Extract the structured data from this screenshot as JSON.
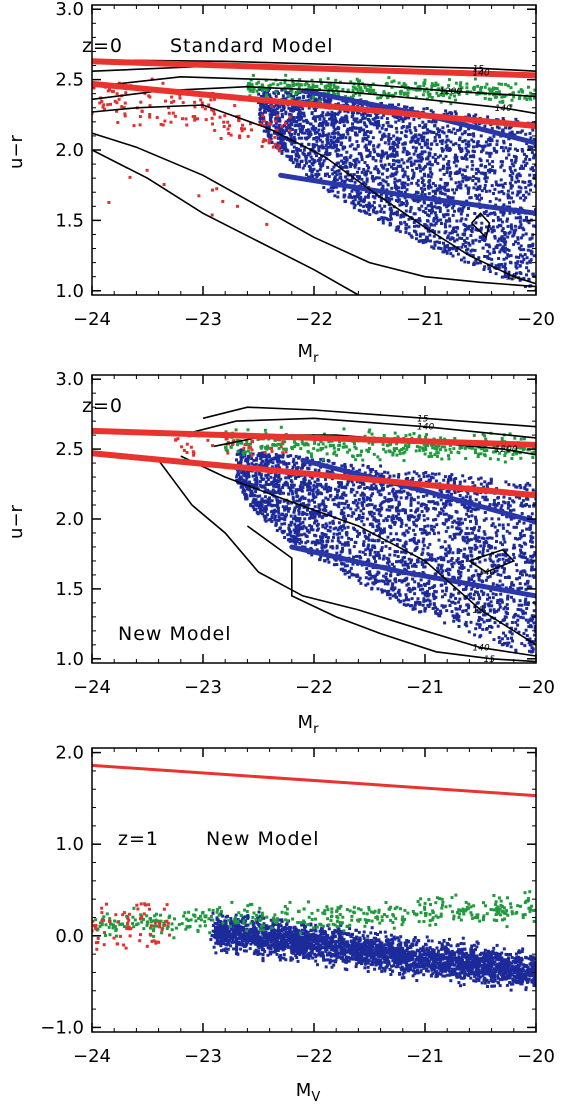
{
  "chart_data": [
    {
      "type": "scatter",
      "title": "",
      "annotations": [
        "z=0",
        "Standard Model"
      ],
      "xlabel": "M",
      "xlabel_sub": "r",
      "ylabel": "u−r",
      "xlim": [
        -24,
        -20
      ],
      "ylim": [
        0.97,
        3.03
      ],
      "xticks": [
        -24,
        -23,
        -22,
        -21,
        -20
      ],
      "xtick_labels": [
        "−24",
        "−23",
        "−22",
        "−21",
        "−20"
      ],
      "yticks": [
        1.0,
        1.5,
        2.0,
        2.5,
        3.0
      ],
      "ytick_labels": [
        "1.0",
        "1.5",
        "2.0",
        "2.5",
        "3.0"
      ],
      "colors": {
        "red": "#e03030",
        "green": "#1f9a3c",
        "blue": "#1c2a9a",
        "line": "#e8332e",
        "contour": "#000000"
      },
      "red_lines": [
        {
          "x": [
            -24,
            -20
          ],
          "y": [
            2.63,
            2.53
          ]
        },
        {
          "x": [
            -24,
            -20
          ],
          "y": [
            2.47,
            2.17
          ]
        }
      ],
      "blue_ridges": [
        {
          "x": [
            -22.1,
            -21.0,
            -20.0
          ],
          "y": [
            2.42,
            2.25,
            2.05
          ]
        },
        {
          "x": [
            -22.3,
            -21.2,
            -20.0
          ],
          "y": [
            1.82,
            1.68,
            1.55
          ]
        }
      ],
      "contour_labels": [
        "15",
        "140",
        "1200",
        "140",
        "15"
      ],
      "contours": [
        {
          "x": [
            -24,
            -22.8,
            -21.5,
            -20.5,
            -20
          ],
          "y": [
            2.64,
            2.63,
            2.6,
            2.58,
            2.56
          ]
        },
        {
          "x": [
            -24,
            -22.8,
            -21.5,
            -20.5,
            -20
          ],
          "y": [
            2.56,
            2.6,
            2.58,
            2.55,
            2.52
          ]
        },
        {
          "x": [
            -24,
            -23.2,
            -22.4,
            -21.6,
            -20.8,
            -20
          ],
          "y": [
            2.45,
            2.52,
            2.5,
            2.47,
            2.42,
            2.38
          ]
        },
        {
          "x": [
            -24,
            -23.4,
            -22.6,
            -21.8,
            -21.0,
            -20.3,
            -20
          ],
          "y": [
            2.36,
            2.42,
            2.45,
            2.42,
            2.36,
            2.3,
            2.26
          ]
        },
        {
          "x": [
            -24,
            -23.6,
            -23.0,
            -22.4,
            -21.9,
            -21.5,
            -21.0,
            -20.6,
            -20.2,
            -20
          ],
          "y": [
            2.27,
            2.3,
            2.32,
            2.15,
            1.95,
            1.72,
            1.45,
            1.25,
            1.1,
            1.05
          ]
        },
        {
          "x": [
            -24,
            -23.6,
            -23.0,
            -22.5,
            -22.0,
            -21.5,
            -21.0,
            -20.5,
            -20
          ],
          "y": [
            2.12,
            2.02,
            1.82,
            1.6,
            1.38,
            1.2,
            1.1,
            1.06,
            1.03
          ]
        },
        {
          "x": [
            -20.58,
            -20.5,
            -20.42,
            -20.45,
            -20.58
          ],
          "y": [
            1.48,
            1.55,
            1.48,
            1.38,
            1.48
          ]
        },
        {
          "x": [
            -24,
            -23.5,
            -23.0,
            -22.5,
            -22.0,
            -21.6
          ],
          "y": [
            2.0,
            1.8,
            1.55,
            1.35,
            1.15,
            0.97
          ]
        }
      ],
      "points": {
        "blue": {
          "n": 2600,
          "x_range": [
            -22.5,
            -20.0
          ],
          "y_range": [
            1.0,
            2.45
          ]
        },
        "green": {
          "n": 360,
          "x_range": [
            -22.6,
            -20.0
          ],
          "y_range": [
            2.3,
            2.6
          ]
        },
        "red": {
          "n": 150,
          "x_range": [
            -24.0,
            -22.2
          ],
          "y_range": [
            1.5,
            2.55
          ]
        }
      }
    },
    {
      "type": "scatter",
      "title": "",
      "annotations": [
        "z=0",
        "New Model"
      ],
      "xlabel": "M",
      "xlabel_sub": "r",
      "ylabel": "u−r",
      "xlim": [
        -24,
        -20
      ],
      "ylim": [
        0.97,
        3.03
      ],
      "xticks": [
        -24,
        -23,
        -22,
        -21,
        -20
      ],
      "xtick_labels": [
        "−24",
        "−23",
        "−22",
        "−21",
        "−20"
      ],
      "yticks": [
        1.0,
        1.5,
        2.0,
        2.5,
        3.0
      ],
      "ytick_labels": [
        "1.0",
        "1.5",
        "2.0",
        "2.5",
        "3.0"
      ],
      "colors": {
        "red": "#e03030",
        "green": "#1f9a3c",
        "blue": "#1c2a9a",
        "line": "#e8332e",
        "contour": "#000000"
      },
      "red_lines": [
        {
          "x": [
            -24,
            -20
          ],
          "y": [
            2.63,
            2.53
          ]
        },
        {
          "x": [
            -24,
            -20
          ],
          "y": [
            2.47,
            2.17
          ]
        }
      ],
      "blue_ridges": [
        {
          "x": [
            -22.1,
            -21.0,
            -20.0
          ],
          "y": [
            2.42,
            2.2,
            1.98
          ]
        },
        {
          "x": [
            -22.2,
            -21.2,
            -20.0
          ],
          "y": [
            1.8,
            1.62,
            1.45
          ]
        }
      ],
      "contour_labels": [
        "15",
        "140",
        "1200",
        "15",
        "140",
        "15",
        "140"
      ],
      "contours": [
        {
          "x": [
            -23.0,
            -22.6,
            -22.0,
            -21.0,
            -20.0
          ],
          "y": [
            2.72,
            2.8,
            2.78,
            2.72,
            2.66
          ]
        },
        {
          "x": [
            -23.2,
            -22.7,
            -22.0,
            -21.0,
            -20.0
          ],
          "y": [
            2.6,
            2.7,
            2.72,
            2.66,
            2.58
          ]
        },
        {
          "x": [
            -22.9,
            -22.4,
            -21.8,
            -21.0,
            -20.3,
            -20.0
          ],
          "y": [
            2.52,
            2.6,
            2.6,
            2.55,
            2.5,
            2.46
          ]
        },
        {
          "x": [
            -23.2,
            -22.8,
            -22.3,
            -21.6,
            -21.0,
            -20.5,
            -20.0
          ],
          "y": [
            2.45,
            2.3,
            2.15,
            1.95,
            1.7,
            1.35,
            1.1
          ]
        },
        {
          "x": [
            -23.4,
            -23.1,
            -22.8,
            -22.5,
            -22.1,
            -21.6,
            -21.0,
            -20.5,
            -20.0
          ],
          "y": [
            2.42,
            2.1,
            1.9,
            1.62,
            1.45,
            1.35,
            1.2,
            1.08,
            1.02
          ]
        },
        {
          "x": [
            -22.6,
            -22.2,
            -22.2,
            -21.8,
            -21.4,
            -20.9,
            -20.4,
            -20.0
          ],
          "y": [
            1.95,
            1.72,
            1.45,
            1.3,
            1.18,
            1.05,
            1.0,
            0.98
          ]
        },
        {
          "x": [
            -20.6,
            -20.3,
            -20.2,
            -20.45,
            -20.6
          ],
          "y": [
            1.7,
            1.78,
            1.7,
            1.62,
            1.7
          ]
        }
      ],
      "points": {
        "blue": {
          "n": 2700,
          "x_range": [
            -22.7,
            -20.0
          ],
          "y_range": [
            1.0,
            2.5
          ]
        },
        "green": {
          "n": 380,
          "x_range": [
            -22.8,
            -20.0
          ],
          "y_range": [
            2.35,
            2.75
          ]
        },
        "red": {
          "n": 40,
          "x_range": [
            -23.3,
            -22.2
          ],
          "y_range": [
            2.45,
            2.6
          ]
        }
      }
    },
    {
      "type": "scatter",
      "title": "",
      "annotations": [
        "z=1",
        "New Model"
      ],
      "xlabel": "M",
      "xlabel_sub": "V",
      "ylabel": "",
      "xlim": [
        -24,
        -20
      ],
      "ylim": [
        -1.05,
        2.05
      ],
      "xticks": [
        -24,
        -23,
        -22,
        -21,
        -20
      ],
      "xtick_labels": [
        "−24",
        "−23",
        "−22",
        "−21",
        "−20"
      ],
      "yticks": [
        -1.0,
        0.0,
        1.0,
        2.0
      ],
      "ytick_labels": [
        "−1.0",
        "0.0",
        "1.0",
        "2.0"
      ],
      "colors": {
        "red": "#e03030",
        "green": "#1f9a3c",
        "blue": "#1c2a9a",
        "line": "#e8332e"
      },
      "red_lines": [
        {
          "x": [
            -24,
            -20
          ],
          "y": [
            1.86,
            1.53
          ]
        }
      ],
      "blue_ridges": [],
      "contour_labels": [],
      "contours": [],
      "points": {
        "blue": {
          "n": 3000,
          "x_range": [
            -22.9,
            -20.0
          ],
          "y_range": [
            -0.8,
            0.45
          ]
        },
        "green": {
          "n": 420,
          "x_range": [
            -24.0,
            -20.0
          ],
          "y_range": [
            -0.2,
            0.55
          ]
        },
        "red": {
          "n": 70,
          "x_range": [
            -24.0,
            -23.3
          ],
          "y_range": [
            -0.15,
            0.35
          ]
        }
      }
    }
  ]
}
